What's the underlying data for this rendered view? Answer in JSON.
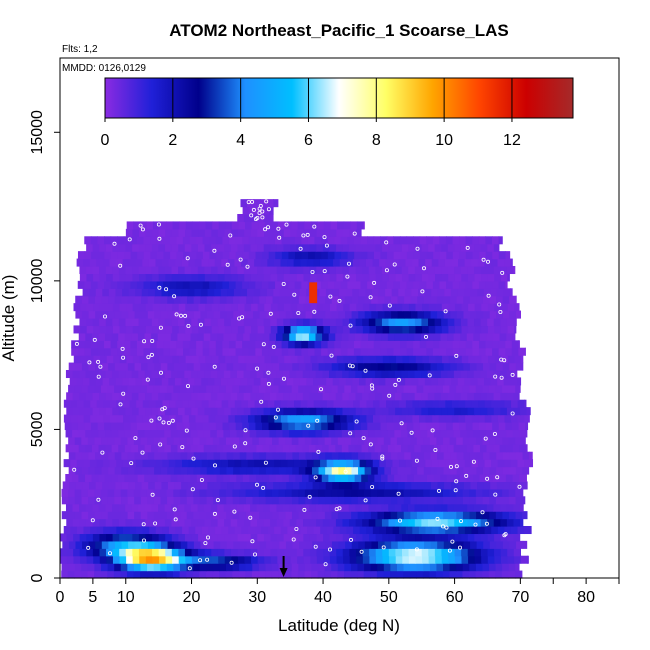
{
  "chart_data": {
    "type": "heatmap",
    "title": "ATOM2 Northeast_Pacific_1 Scoarse_LAS",
    "annotations": {
      "flights": "Flts: 1,2",
      "dates": "MMDD: 0126,0129"
    },
    "xlabel": "Latitude (deg N)",
    "ylabel": "Altitude (m)",
    "xlim": [
      0,
      85
    ],
    "ylim": [
      0,
      17500
    ],
    "x_ticks": [
      0,
      5,
      10,
      20,
      30,
      40,
      50,
      60,
      70,
      80
    ],
    "y_ticks": [
      0,
      5000,
      10000,
      15000
    ],
    "colorbar": {
      "ticks": [
        0,
        2,
        4,
        6,
        8,
        10,
        12
      ],
      "range": [
        0,
        13.8
      ],
      "colors": [
        "#8a2be2",
        "#2020d8",
        "#00008b",
        "#1e90ff",
        "#00bfff",
        "#ffffff",
        "#ffff66",
        "#ffa500",
        "#ff4500",
        "#cc0000",
        "#a52a2a"
      ]
    },
    "marker": {
      "type": "arrow",
      "x": 34
    },
    "hotspot": {
      "x": 38.5,
      "y": 9600
    },
    "grid": false,
    "legend": "colorbar top"
  }
}
